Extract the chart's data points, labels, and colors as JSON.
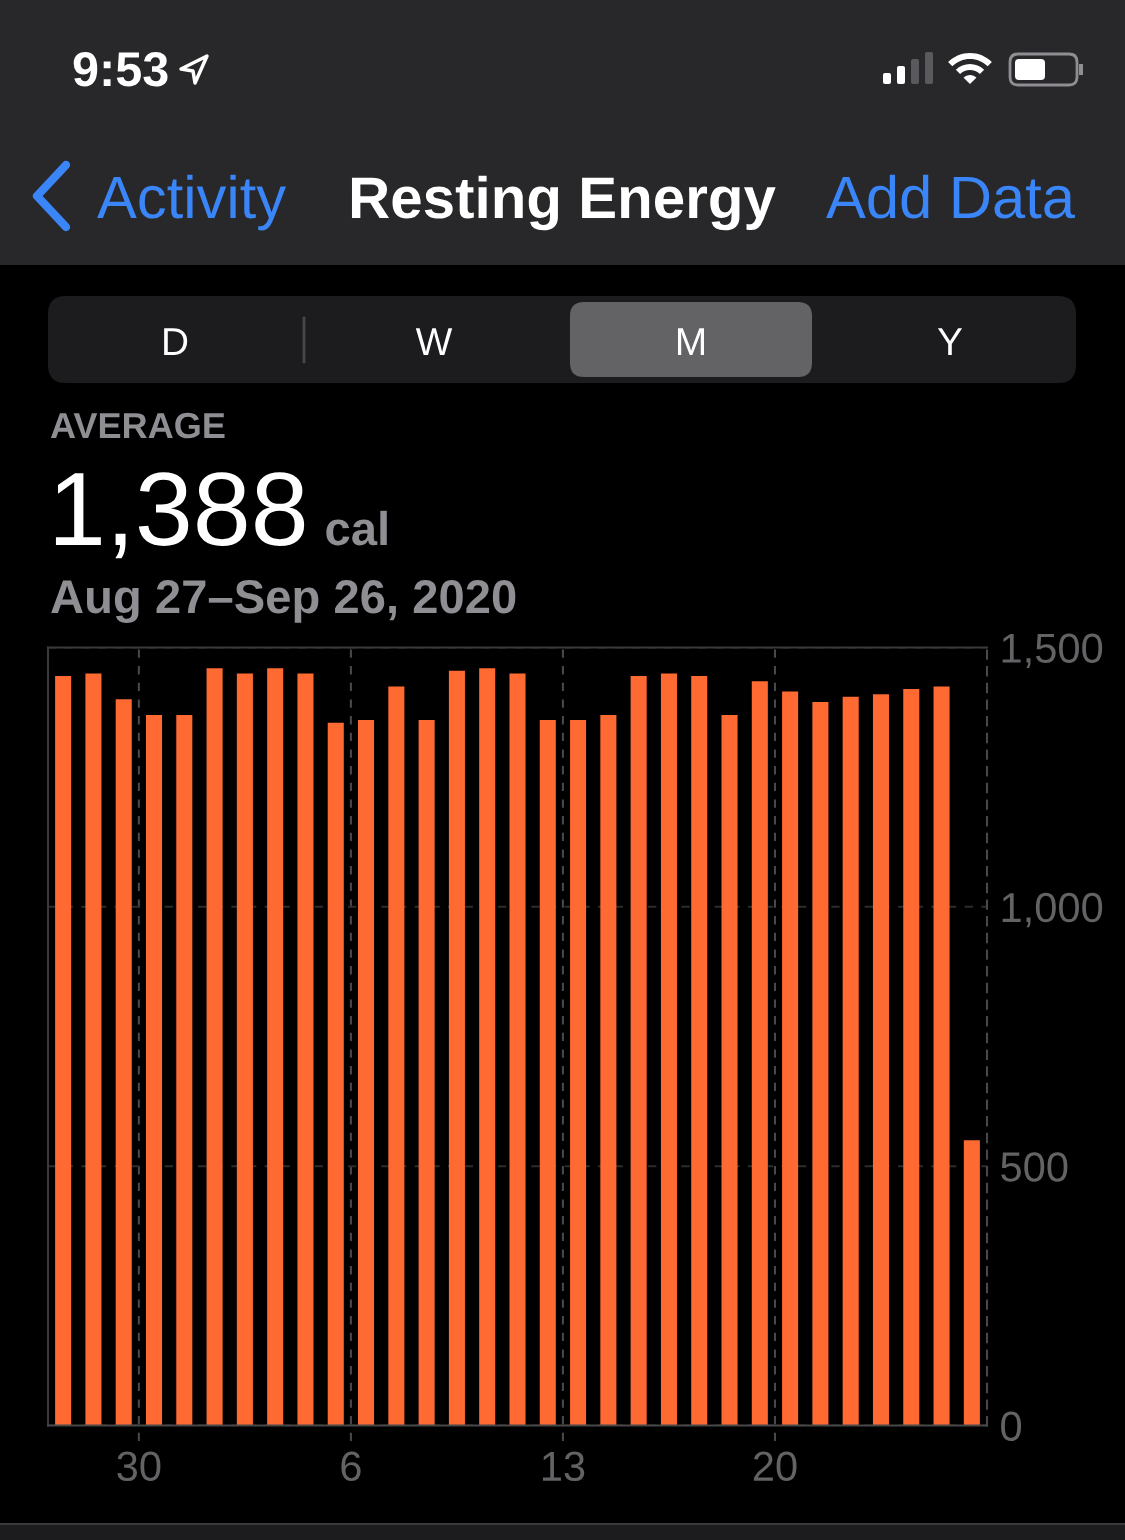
{
  "chart_data": {
    "type": "bar",
    "title": "Resting Energy",
    "subtitle": "Aug 27–Sep 26, 2020",
    "annotations": [
      "9:53",
      "Activity",
      "Add Data",
      "D",
      "W",
      "M",
      "Y",
      "AVERAGE",
      "1,388",
      "cal"
    ],
    "x": [
      "2020-08-27T12:00",
      "2020-08-28T12:00",
      "2020-08-29T12:00",
      "2020-08-30T12:00",
      "2020-08-31T12:00",
      "2020-09-01T12:00",
      "2020-09-02T12:00",
      "2020-09-03T12:00",
      "2020-09-04T12:00",
      "2020-09-05T12:00",
      "2020-09-06T12:00",
      "2020-09-07T12:00",
      "2020-09-08T12:00",
      "2020-09-09T12:00",
      "2020-09-10T12:00",
      "2020-09-11T12:00",
      "2020-09-12T12:00",
      "2020-09-13T12:00",
      "2020-09-14T12:00",
      "2020-09-15T12:00",
      "2020-09-16T12:00",
      "2020-09-17T12:00",
      "2020-09-18T12:00",
      "2020-09-19T12:00",
      "2020-09-20T12:00",
      "2020-09-21T12:00",
      "2020-09-22T12:00",
      "2020-09-23T12:00",
      "2020-09-24T12:00",
      "2020-09-25T12:00",
      "2020-09-26T12:00"
    ],
    "values": [
      1445,
      1450,
      1400,
      1370,
      1370,
      1460,
      1450,
      1460,
      1450,
      1355,
      1360,
      1425,
      1360,
      1455,
      1460,
      1450,
      1360,
      1360,
      1370,
      1445,
      1450,
      1445,
      1370,
      1435,
      1415,
      1395,
      1405,
      1410,
      1420,
      1425,
      550
    ],
    "color": "#ff6a33",
    "xlim": [
      "2020-08-27",
      "2020-09-27"
    ],
    "xticks": [
      {
        "value": "2020-08-30",
        "label": "30"
      },
      {
        "value": "2020-09-06",
        "label": "6"
      },
      {
        "value": "2020-09-13",
        "label": "13"
      },
      {
        "value": "2020-09-20",
        "label": "20"
      }
    ],
    "ylim": [
      0,
      1500
    ],
    "yticks": [
      0,
      500,
      {
        "value": 1000,
        "label": "1,000"
      },
      {
        "value": 1500,
        "label": "1,500"
      }
    ],
    "grid": true
  }
}
